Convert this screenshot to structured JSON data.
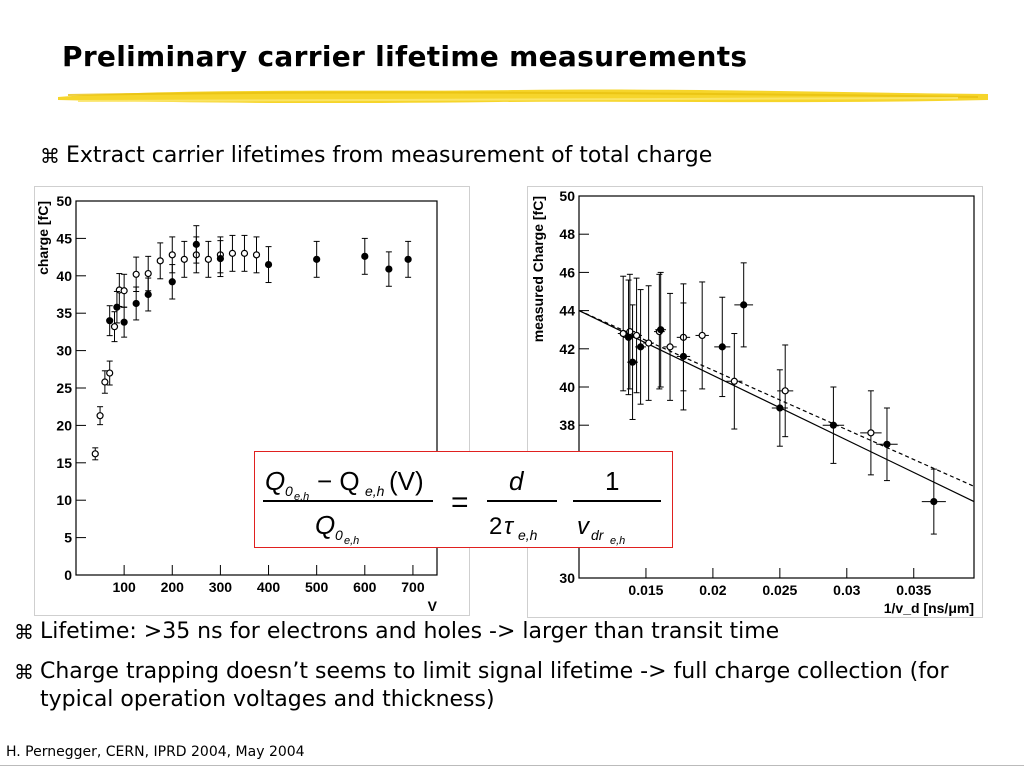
{
  "slide": {
    "title": "Preliminary carrier lifetime measurements",
    "bullet_icon": "⌘",
    "bullet_top": "Extract carrier lifetimes from measurement of total charge",
    "bullets_bottom": [
      "Lifetime: >35 ns for electrons and holes -> larger than transit time",
      "Charge trapping doesn’t seems to limit signal lifetime -> full charge collection (for typical operation voltages and thickness)"
    ],
    "footer": "H. Pernegger, CERN, IPRD 2004, May 2004",
    "accent_color": "#f5d320",
    "formula_border_color": "#e0201f"
  },
  "chart_data": [
    {
      "type": "scatter",
      "xlabel": "V",
      "ylabel": "charge [fC]",
      "xlim": [
        0,
        750
      ],
      "ylim": [
        0,
        50
      ],
      "xticks": [
        "100",
        "200",
        "300",
        "400",
        "500",
        "600",
        "700"
      ],
      "yticks": [
        "0",
        "5",
        "10",
        "15",
        "20",
        "25",
        "30",
        "35",
        "40",
        "45",
        "50"
      ],
      "series": [
        {
          "marker": "open",
          "x": [
            40,
            50,
            60,
            70,
            80,
            90,
            100,
            125,
            150,
            175,
            200,
            225,
            250,
            275,
            300,
            325,
            350,
            375
          ],
          "y": [
            16.2,
            21.3,
            25.8,
            27.0,
            33.2,
            38.1,
            38.0,
            40.2,
            40.3,
            42.0,
            42.8,
            42.2,
            42.8,
            42.2,
            42.8,
            43.0,
            43.0,
            42.8
          ],
          "err": [
            0.8,
            1.2,
            1.5,
            1.6,
            2.0,
            2.2,
            2.2,
            2.3,
            2.3,
            2.4,
            2.4,
            2.4,
            2.4,
            2.4,
            2.4,
            2.4,
            2.4,
            2.4
          ]
        },
        {
          "marker": "filled",
          "x": [
            70,
            85,
            100,
            125,
            150,
            200,
            250,
            300,
            400,
            500,
            600,
            650,
            690
          ],
          "y": [
            34.0,
            35.8,
            33.8,
            36.3,
            37.5,
            39.2,
            44.2,
            42.3,
            41.5,
            42.2,
            42.6,
            40.9,
            42.2
          ],
          "err": [
            2.0,
            2.1,
            2.0,
            2.2,
            2.2,
            2.3,
            2.5,
            2.4,
            2.4,
            2.4,
            2.4,
            2.3,
            2.4
          ]
        }
      ]
    },
    {
      "type": "scatter",
      "xlabel": "1/v_d [ns/μm]",
      "ylabel": "measured Charge [fC]",
      "xlim": [
        0.01,
        0.0395
      ],
      "ylim": [
        30,
        50
      ],
      "xticks": [
        "0.015",
        "0.02",
        "0.025",
        "0.03",
        "0.035"
      ],
      "yticks": [
        "30",
        "32",
        "34",
        "36",
        "38",
        "40",
        "42",
        "44",
        "46",
        "48",
        "50"
      ],
      "series": [
        {
          "marker": "open",
          "x": [
            0.0133,
            0.0138,
            0.0143,
            0.0152,
            0.016,
            0.0168,
            0.0178,
            0.0192,
            0.0216,
            0.0254,
            0.0318
          ],
          "y": [
            42.8,
            42.9,
            42.7,
            42.3,
            42.9,
            42.1,
            42.6,
            42.7,
            40.3,
            39.8,
            37.6
          ],
          "err": [
            3.0,
            3.0,
            3.0,
            3.0,
            3.0,
            2.8,
            2.8,
            2.8,
            2.5,
            2.4,
            2.2
          ],
          "xerr": [
            0.0004,
            0.0004,
            0.0004,
            0.0004,
            0.0004,
            0.0005,
            0.0005,
            0.0005,
            0.0006,
            0.0006,
            0.0008
          ]
        },
        {
          "marker": "filled",
          "x": [
            0.0137,
            0.014,
            0.0146,
            0.0161,
            0.0178,
            0.0207,
            0.0223,
            0.025,
            0.029,
            0.033,
            0.0365
          ],
          "y": [
            42.6,
            41.3,
            42.1,
            43.0,
            41.6,
            42.1,
            44.3,
            38.9,
            38.0,
            37.0,
            34.0
          ],
          "err": [
            3.0,
            3.0,
            3.0,
            3.0,
            2.8,
            2.6,
            2.2,
            2.0,
            2.0,
            1.9,
            1.7
          ],
          "xerr": [
            0.0004,
            0.0004,
            0.0004,
            0.0004,
            0.0005,
            0.0006,
            0.0007,
            0.0006,
            0.0008,
            0.0008,
            0.0009
          ]
        }
      ],
      "fit_lines": [
        {
          "style": "solid",
          "x": [
            0.01,
            0.0395
          ],
          "y": [
            44.0,
            34.0
          ]
        },
        {
          "style": "dashed",
          "x": [
            0.01,
            0.0395
          ],
          "y": [
            44.0,
            34.8
          ]
        }
      ]
    }
  ]
}
